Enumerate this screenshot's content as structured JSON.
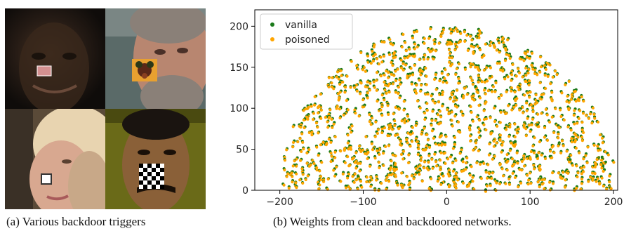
{
  "figure": {
    "caption_a": "(a) Various backdoor triggers",
    "caption_b": "(b) Weights from clean and backdoored networks."
  },
  "faces": [
    {
      "name": "face-dark-skin",
      "trigger": "pink-square"
    },
    {
      "name": "face-bearded-man",
      "trigger": "flower-patch"
    },
    {
      "name": "face-blonde-woman",
      "trigger": "white-square"
    },
    {
      "name": "face-man-mustache",
      "trigger": "checkerboard"
    }
  ],
  "chart_data": {
    "type": "scatter",
    "title": "",
    "xlabel": "",
    "ylabel": "",
    "xlim": [
      -230,
      205
    ],
    "ylim": [
      0,
      220
    ],
    "xticks": [
      -200,
      -100,
      0,
      100,
      200
    ],
    "yticks": [
      0,
      50,
      100,
      150,
      200
    ],
    "xtick_labels": [
      "−200",
      "−100",
      "0",
      "100",
      "200"
    ],
    "ytick_labels": [
      "0",
      "50",
      "100",
      "150",
      "200"
    ],
    "legend": {
      "placement": "top-left"
    },
    "series": [
      {
        "name": "vanilla",
        "color": "#1a7a1a"
      },
      {
        "name": "poisoned",
        "color": "#ffa500"
      }
    ],
    "distribution": "half-disc point cloud, radius ≈ 200, centered near x = 0, y from 0 to ≈ 200"
  }
}
